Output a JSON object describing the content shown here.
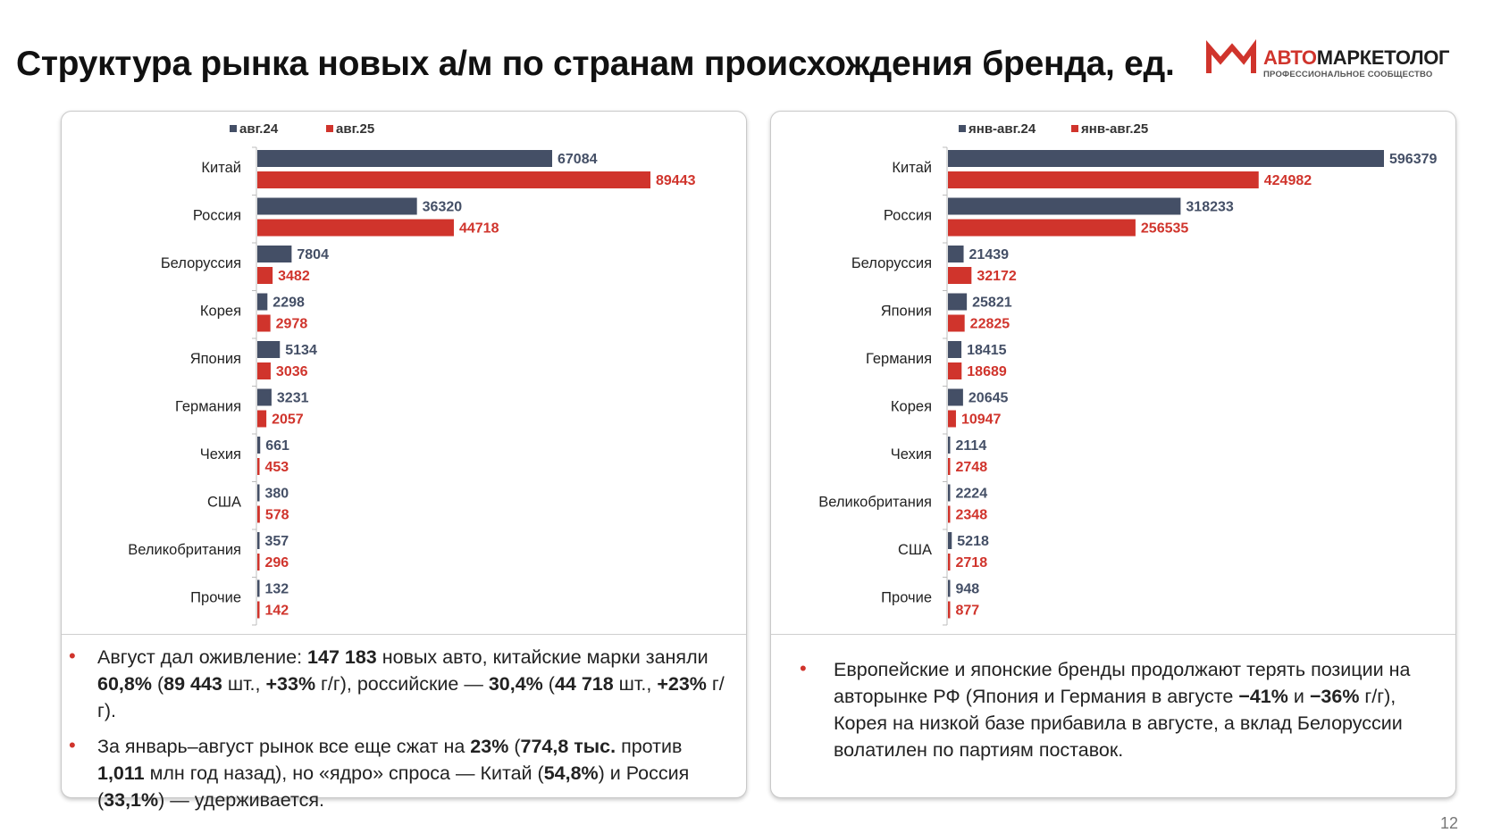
{
  "title": "Структура рынка новых а/м по странам происхождения бренда, ед.",
  "logo": {
    "name_accent": "АВТО",
    "name_rest": "МАРКЕТОЛОГ",
    "subtitle": "ПРОФЕССИОНАЛЬНОЕ СООБЩЕСТВО",
    "mark_color": "#d0342c"
  },
  "colors": {
    "series_a": "#444f66",
    "series_b": "#d0342c"
  },
  "chart_data": [
    {
      "type": "bar",
      "orientation": "horizontal",
      "legend_position": "top-left",
      "grid": false,
      "categories": [
        "Китай",
        "Россия",
        "Белоруссия",
        "Корея",
        "Япония",
        "Германия",
        "Чехия",
        "США",
        "Великобритания",
        "Прочие"
      ],
      "series": [
        {
          "name": "авг.24",
          "color": "#444f66",
          "values": [
            67084,
            36320,
            7804,
            2298,
            5134,
            3231,
            661,
            380,
            357,
            132
          ]
        },
        {
          "name": "авг.25",
          "color": "#d0342c",
          "values": [
            89443,
            44718,
            3482,
            2978,
            3036,
            2057,
            453,
            578,
            296,
            142
          ]
        }
      ],
      "xlim": [
        0,
        89443
      ]
    },
    {
      "type": "bar",
      "orientation": "horizontal",
      "legend_position": "top-left",
      "grid": false,
      "categories": [
        "Китай",
        "Россия",
        "Белоруссия",
        "Япония",
        "Германия",
        "Корея",
        "Чехия",
        "Великобритания",
        "США",
        "Прочие"
      ],
      "series": [
        {
          "name": "янв-авг.24",
          "color": "#444f66",
          "values": [
            596379,
            318233,
            21439,
            25821,
            18415,
            20645,
            2114,
            2224,
            5218,
            948
          ]
        },
        {
          "name": "янв-авг.25",
          "color": "#d0342c",
          "values": [
            424982,
            256535,
            32172,
            22825,
            18689,
            10947,
            2748,
            2348,
            2718,
            877
          ]
        }
      ],
      "xlim": [
        0,
        596379
      ]
    }
  ],
  "notes": {
    "left": [
      {
        "a": "Август дал оживление: ",
        "b": "147 183",
        "c": " новых авто, китайские марки заняли ",
        "d": "60,8%",
        "e": " (",
        "f": "89 443",
        "g": " шт., ",
        "h": "+33%",
        "i": " г/г), российские — ",
        "j": "30,4%",
        "k": " (",
        "l": "44 718",
        "m": " шт., ",
        "n": "+23%",
        "o": " г/г)."
      },
      {
        "a": "За январь–август рынок все еще сжат на ",
        "b": "23%",
        "c": " (",
        "d": "774,8 тыс.",
        "e": " против ",
        "f": "1,011",
        "g": " млн год назад), но «ядро» спроса — Китай (",
        "h": "54,8%",
        "i": ") и Россия (",
        "j": "33,1%",
        "k": ") — удерживается."
      }
    ],
    "right": [
      {
        "a": "Европейские и японские бренды продолжают терять позиции на авторынке РФ (Япония и Германия в августе ",
        "b": "−41%",
        "c": " и ",
        "d": "−36%",
        "e": " г/г), Корея на низкой базе прибавила в августе, а вклад Белоруссии волатилен по партиям поставок."
      }
    ]
  },
  "page_number": "12"
}
